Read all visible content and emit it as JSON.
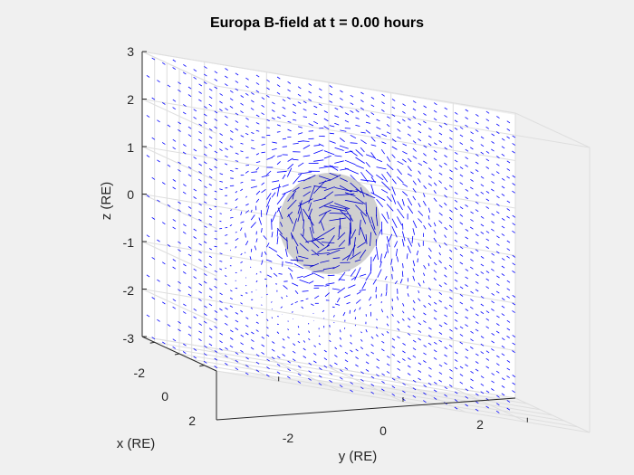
{
  "chart_data": {
    "type": "quiver3",
    "title": "Europa B-field at t = 0.00 hours",
    "xlabel": "x (RE)",
    "ylabel": "y (RE)",
    "zlabel": "z (RE)",
    "xlim": [
      -3,
      3
    ],
    "ylim": [
      -3,
      3
    ],
    "zlim": [
      -3,
      3
    ],
    "xticks": [
      "-2",
      "0",
      "2"
    ],
    "yticks": [
      "-2",
      "0",
      "2"
    ],
    "zticks": [
      "3",
      "2",
      "1",
      "0",
      "-1",
      "-2",
      "-3"
    ],
    "grid": true,
    "body": {
      "name": "Europa",
      "radius": 1,
      "center": [
        0,
        0,
        0
      ],
      "color": "#c8c8c8"
    },
    "arrow_color": "#0000ff",
    "background_field_direction": "diagonal, from upper-left to lower-right in view",
    "colors": {
      "figure_bg": "#f0f0f0",
      "axes_bg": "#ffffff",
      "grid": "#dcdcdc",
      "axis": "#262626"
    }
  }
}
